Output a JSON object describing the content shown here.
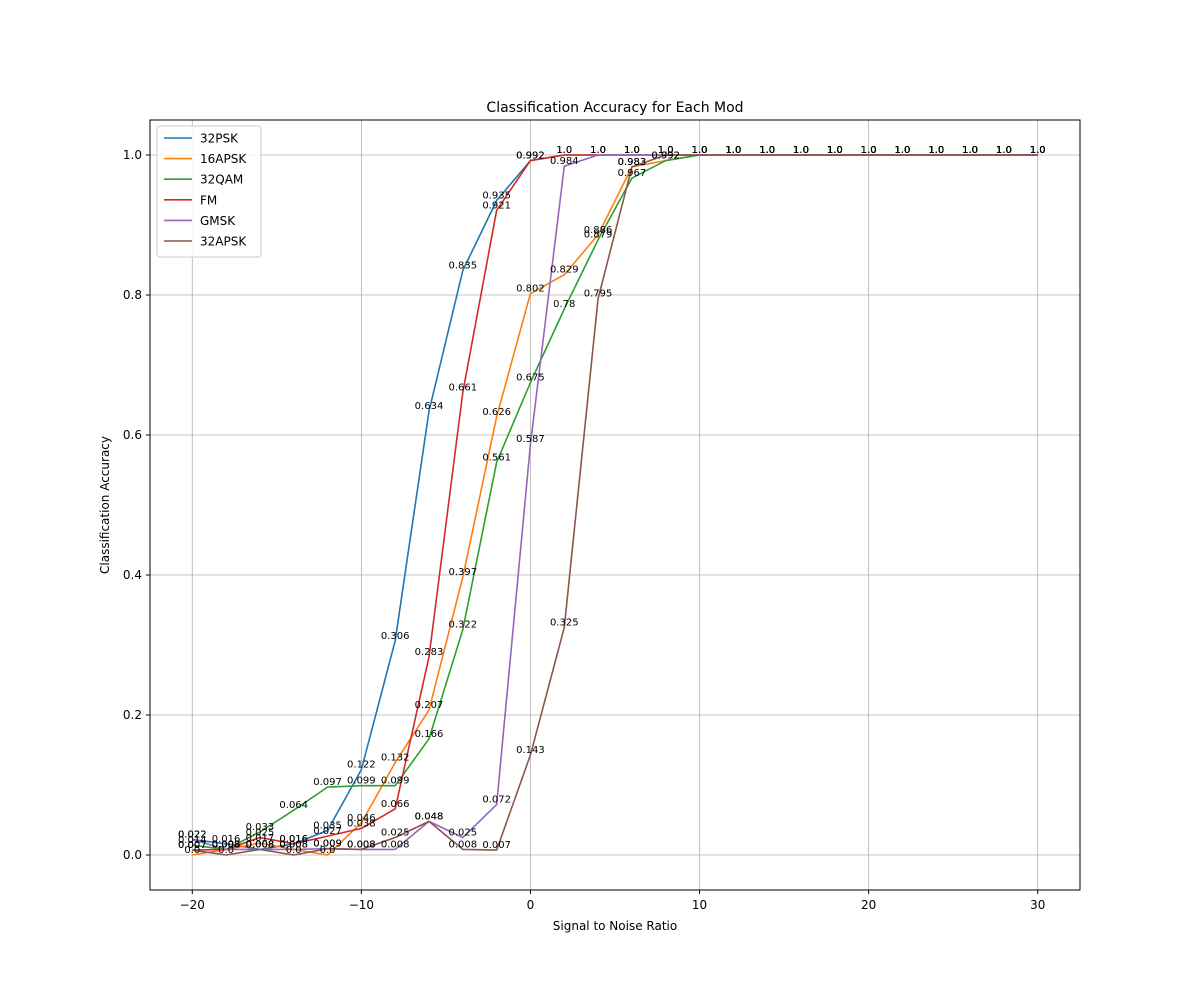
{
  "chart_data": {
    "type": "line",
    "title": "Classification Accuracy for Each Mod",
    "xlabel": "Signal to Noise Ratio",
    "ylabel": "Classification Accuracy",
    "xlim": [
      -22.5,
      32.5
    ],
    "ylim": [
      -0.05,
      1.05
    ],
    "xticks": [
      -20,
      -10,
      0,
      10,
      20,
      30
    ],
    "xtick_labels": [
      "−20",
      "−10",
      "0",
      "10",
      "20",
      "30"
    ],
    "yticks": [
      0.0,
      0.2,
      0.4,
      0.6,
      0.8,
      1.0
    ],
    "ytick_labels": [
      "0.0",
      "0.2",
      "0.4",
      "0.6",
      "0.8",
      "1.0"
    ],
    "grid": true,
    "legend_position": "top-left",
    "x": [
      -20,
      -18,
      -16,
      -14,
      -12,
      -10,
      -8,
      -6,
      -4,
      -2,
      0,
      2,
      4,
      6,
      8,
      10,
      12,
      14,
      16,
      18,
      20,
      22,
      24,
      26,
      28,
      30
    ],
    "series": [
      {
        "name": "32PSK",
        "color": "#1f77b4",
        "values": [
          0.022,
          0.016,
          0.008,
          0.016,
          0.035,
          0.122,
          0.306,
          0.634,
          0.835,
          0.935,
          0.992,
          1.0,
          1.0,
          1.0,
          1.0,
          1.0,
          1.0,
          1.0,
          1.0,
          1.0,
          1.0,
          1.0,
          1.0,
          1.0,
          1.0,
          1.0
        ]
      },
      {
        "name": "16APSK",
        "color": "#ff7f0e",
        "values": [
          0.0,
          0.008,
          0.017,
          0.008,
          0.0,
          0.046,
          0.132,
          0.207,
          0.397,
          0.626,
          0.802,
          0.829,
          0.886,
          0.983,
          0.992,
          1.0,
          1.0,
          1.0,
          1.0,
          1.0,
          1.0,
          1.0,
          1.0,
          1.0,
          1.0,
          1.0
        ]
      },
      {
        "name": "32QAM",
        "color": "#2ca02c",
        "values": [
          0.014,
          0.008,
          0.033,
          0.064,
          0.097,
          0.099,
          0.099,
          0.166,
          0.322,
          0.561,
          0.675,
          0.78,
          0.879,
          0.967,
          0.992,
          1.0,
          1.0,
          1.0,
          1.0,
          1.0,
          1.0,
          1.0,
          1.0,
          1.0,
          1.0,
          1.0
        ]
      },
      {
        "name": "FM",
        "color": "#d62728",
        "values": [
          0.007,
          0.008,
          0.025,
          0.016,
          0.027,
          0.038,
          0.066,
          0.283,
          0.661,
          0.921,
          0.992,
          1.0,
          1.0,
          1.0,
          1.0,
          1.0,
          1.0,
          1.0,
          1.0,
          1.0,
          1.0,
          1.0,
          1.0,
          1.0,
          1.0,
          1.0
        ]
      },
      {
        "name": "GMSK",
        "color": "#9467bd",
        "values": [
          0.022,
          0.008,
          0.008,
          0.008,
          0.009,
          0.008,
          0.008,
          0.048,
          0.025,
          0.072,
          0.587,
          0.984,
          1.0,
          1.0,
          1.0,
          1.0,
          1.0,
          1.0,
          1.0,
          1.0,
          1.0,
          1.0,
          1.0,
          1.0,
          1.0,
          1.0
        ]
      },
      {
        "name": "32APSK",
        "color": "#8c564b",
        "values": [
          0.007,
          0.0,
          0.008,
          0.0,
          0.009,
          0.008,
          0.025,
          0.048,
          0.008,
          0.007,
          0.143,
          0.325,
          0.795,
          0.983,
          1.0,
          1.0,
          1.0,
          1.0,
          1.0,
          1.0,
          1.0,
          1.0,
          1.0,
          1.0,
          1.0,
          1.0
        ]
      }
    ]
  }
}
